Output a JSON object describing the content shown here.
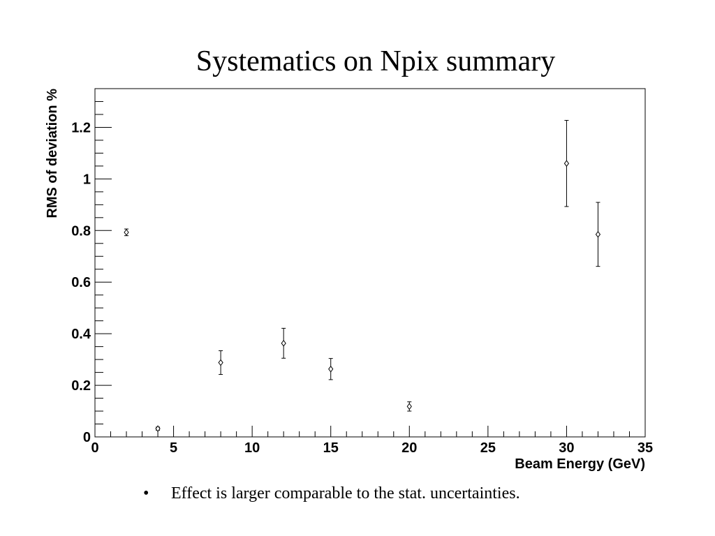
{
  "slide": {
    "title": "Systematics on Npix summary",
    "bullet_mark": "•",
    "bullet_text": "Effect is larger comparable to the stat. uncertainties."
  },
  "chart_data": {
    "type": "scatter",
    "title": "",
    "xlabel": "Beam Energy (GeV)",
    "ylabel": "RMS of deviation %",
    "xlim": [
      0,
      35
    ],
    "ylim": [
      0,
      1.35
    ],
    "x_ticks": [
      0,
      5,
      10,
      15,
      20,
      25,
      30,
      35
    ],
    "x_tick_labels": [
      "0",
      "5",
      "10",
      "15",
      "20",
      "25",
      "30",
      "35"
    ],
    "y_ticks": [
      0,
      0.2,
      0.4,
      0.6,
      0.8,
      1.0,
      1.2
    ],
    "y_tick_labels": [
      "0",
      "0.2",
      "0.4",
      "0.6",
      "0.8",
      "1",
      "1.2"
    ],
    "grid": false,
    "legend": "none",
    "marker": "open-diamond",
    "points": [
      {
        "x": 2,
        "y": 0.793,
        "err": 0.013
      },
      {
        "x": 4,
        "y": 0.032,
        "err": 0.006
      },
      {
        "x": 8,
        "y": 0.288,
        "err": 0.046
      },
      {
        "x": 12,
        "y": 0.363,
        "err": 0.058
      },
      {
        "x": 15,
        "y": 0.263,
        "err": 0.041
      },
      {
        "x": 20,
        "y": 0.118,
        "err": 0.018
      },
      {
        "x": 30,
        "y": 1.06,
        "err": 0.167
      },
      {
        "x": 32,
        "y": 0.785,
        "err": 0.124
      }
    ],
    "colors": {
      "marker": "#000000",
      "axis": "#000000"
    }
  }
}
